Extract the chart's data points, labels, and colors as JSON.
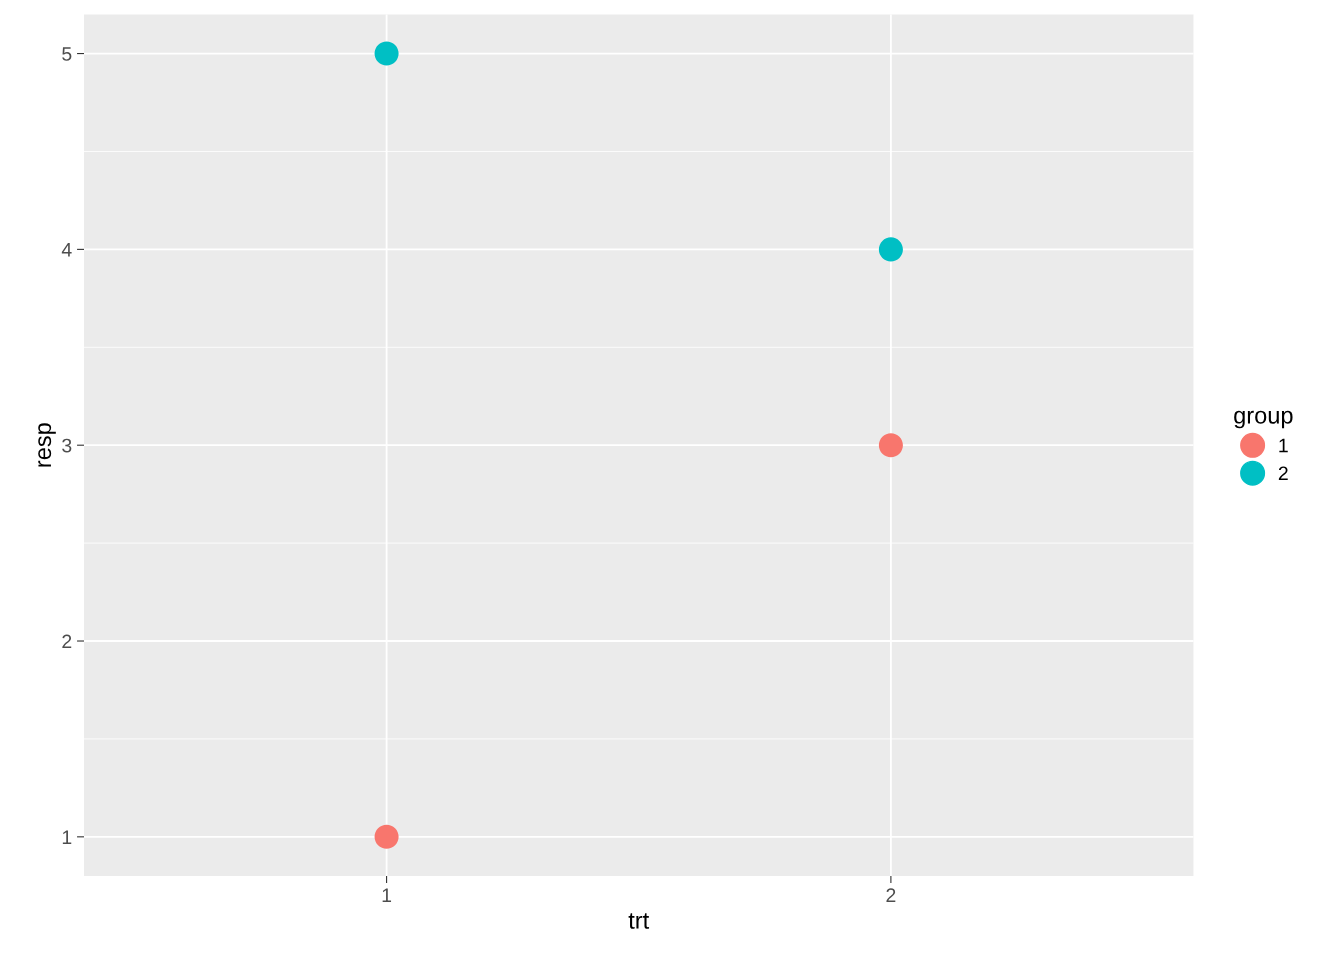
{
  "chart_data": {
    "type": "scatter",
    "xlabel": "trt",
    "ylabel": "resp",
    "legend_title": "group",
    "categories": [
      "1",
      "2"
    ],
    "series": [
      {
        "name": "1",
        "color": "#f8766d",
        "values": [
          1,
          3
        ]
      },
      {
        "name": "2",
        "color": "#00bfc4",
        "values": [
          5,
          4
        ]
      }
    ],
    "ylim": [
      0.8,
      5.2
    ],
    "yticks": [
      1,
      2,
      3,
      4,
      5
    ],
    "grid": true,
    "legend": "right",
    "marker": "circle"
  }
}
